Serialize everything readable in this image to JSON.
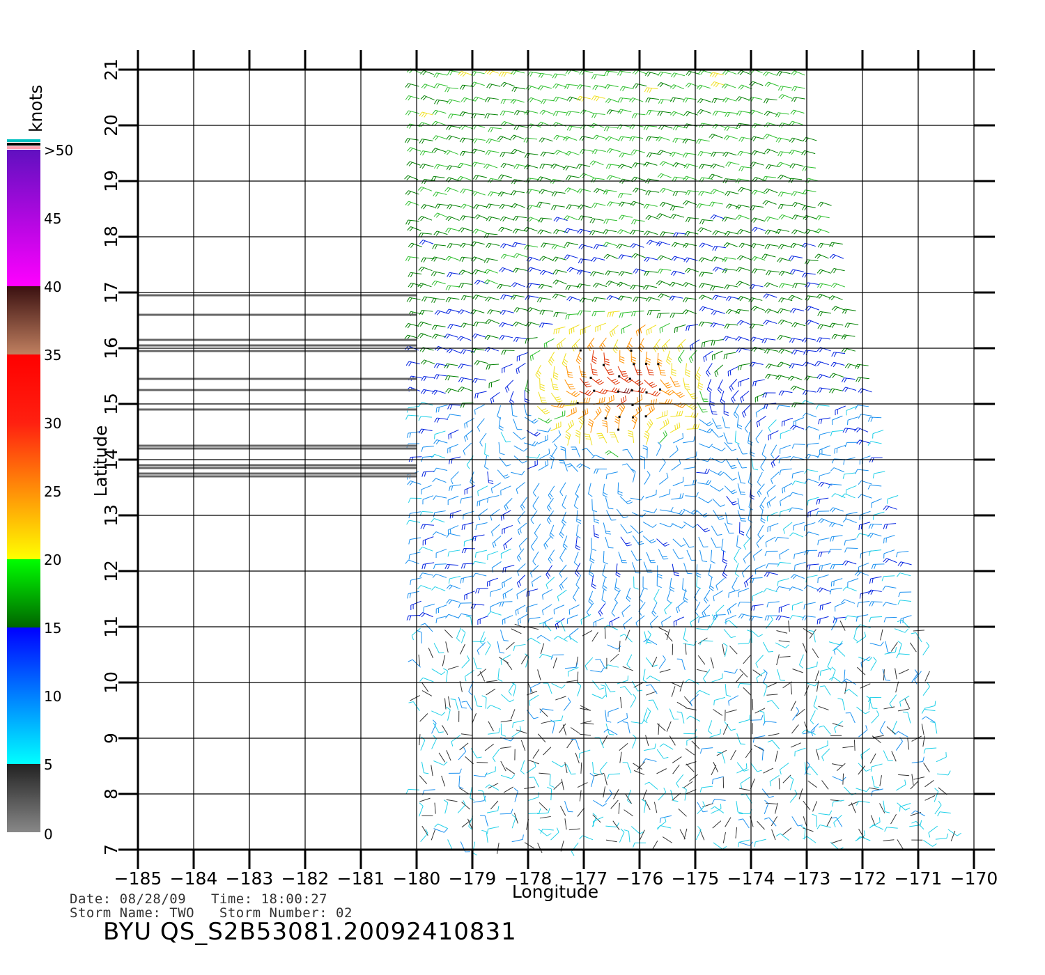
{
  "colorbar": {
    "unit_label": "knots",
    "segments": [
      {
        "from": 0,
        "to": 5,
        "colors": [
          "#888888",
          "#222222"
        ]
      },
      {
        "from": 5,
        "to": 15,
        "colors": [
          "#00ffff",
          "#0000ff"
        ]
      },
      {
        "from": 15,
        "to": 20,
        "colors": [
          "#006400",
          "#00ff00"
        ]
      },
      {
        "from": 20,
        "to": 30,
        "colors": [
          "#ffff00",
          "#ff2010"
        ]
      },
      {
        "from": 30,
        "to": 35,
        "colors": [
          "#ff2010",
          "#ff0000"
        ]
      },
      {
        "from": 35,
        "to": 40,
        "colors": [
          "#c08060",
          "#3a1010"
        ]
      },
      {
        "from": 40,
        "to": 50,
        "colors": [
          "#ff00ff",
          "#6010c0"
        ]
      }
    ],
    "tick_labels": [
      "0",
      "5",
      "10",
      "15",
      "20",
      "25",
      "30",
      "35",
      "40",
      "45",
      ">50"
    ],
    "tick_values": [
      0,
      5,
      10,
      15,
      20,
      25,
      30,
      35,
      40,
      45,
      50
    ]
  },
  "map": {
    "xlabel": "Longitude",
    "ylabel": "Latitude",
    "lon_range": [
      -185,
      -170
    ],
    "lat_range": [
      7,
      21
    ],
    "lon_ticks": [
      "-185",
      "-184",
      "-183",
      "-182",
      "-181",
      "-180",
      "-179",
      "-178",
      "-177",
      "-176",
      "-175",
      "-174",
      "-173",
      "-172",
      "-171",
      "-170"
    ],
    "lat_ticks": [
      "7",
      "8",
      "9",
      "10",
      "11",
      "12",
      "13",
      "14",
      "15",
      "16",
      "17",
      "18",
      "19",
      "20",
      "21"
    ],
    "swath_polygon": [
      [
        -180,
        21
      ],
      [
        -173,
        21
      ],
      [
        -173,
        20.8
      ],
      [
        -171,
        11.8
      ],
      [
        -170.3,
        7
      ],
      [
        -180,
        7
      ]
    ],
    "data_gap_lines_lat": [
      16.95,
      16.6,
      16.15,
      16.05,
      15.95,
      15.45,
      15.25,
      14.9,
      14.25,
      14.2,
      13.9,
      13.85,
      13.75,
      13.7
    ],
    "storm_center": {
      "lon": -176.2,
      "lat": 13.6
    },
    "high_wind_region": {
      "lon": -176.4,
      "lat": 15.4
    }
  },
  "info": {
    "line1": "Date: 08/28/09   Time: 18:00:27",
    "line2": "Storm Name: TWO   Storm Number: 02",
    "file_id": "BYU QS_S2B53081.20092410831"
  }
}
